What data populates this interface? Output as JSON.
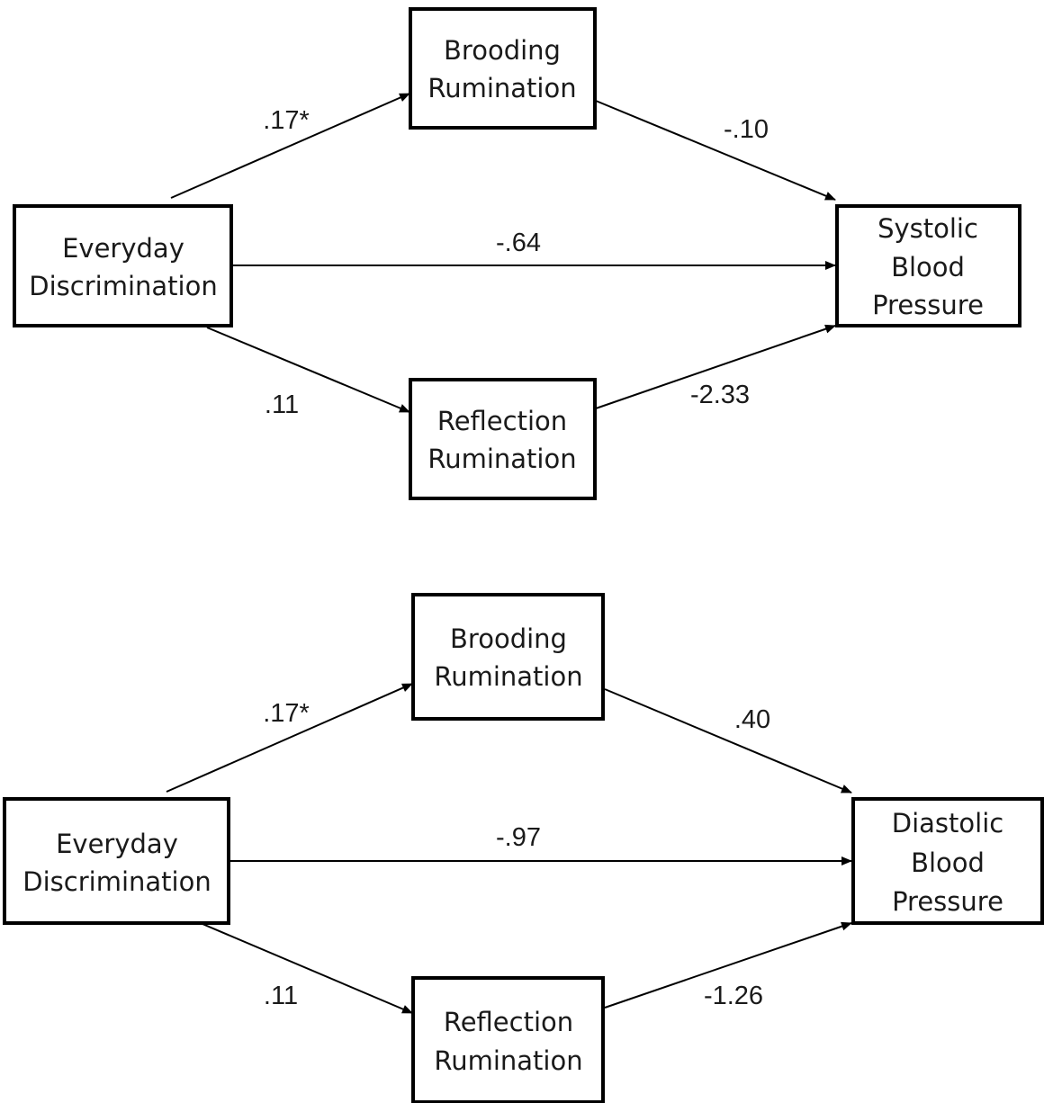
{
  "panels": [
    {
      "predictor": [
        "Everyday",
        "Discrimination"
      ],
      "mediator_top": [
        "Brooding",
        "Rumination"
      ],
      "mediator_bottom": [
        "Reflection",
        "Rumination"
      ],
      "outcome": [
        "Systolic",
        "Blood",
        "Pressure"
      ],
      "paths": {
        "a_top": ".17*",
        "b_top": "-.10",
        "c_direct": "-.64",
        "a_bottom": ".11",
        "b_bottom": "-2.33"
      }
    },
    {
      "predictor": [
        "Everyday",
        "Discrimination"
      ],
      "mediator_top": [
        "Brooding",
        "Rumination"
      ],
      "mediator_bottom": [
        "Reflection",
        "Rumination"
      ],
      "outcome": [
        "Diastolic",
        "Blood",
        "Pressure"
      ],
      "paths": {
        "a_top": ".17*",
        "b_top": ".40",
        "c_direct": "-.97",
        "a_bottom": ".11",
        "b_bottom": "-1.26"
      }
    }
  ]
}
